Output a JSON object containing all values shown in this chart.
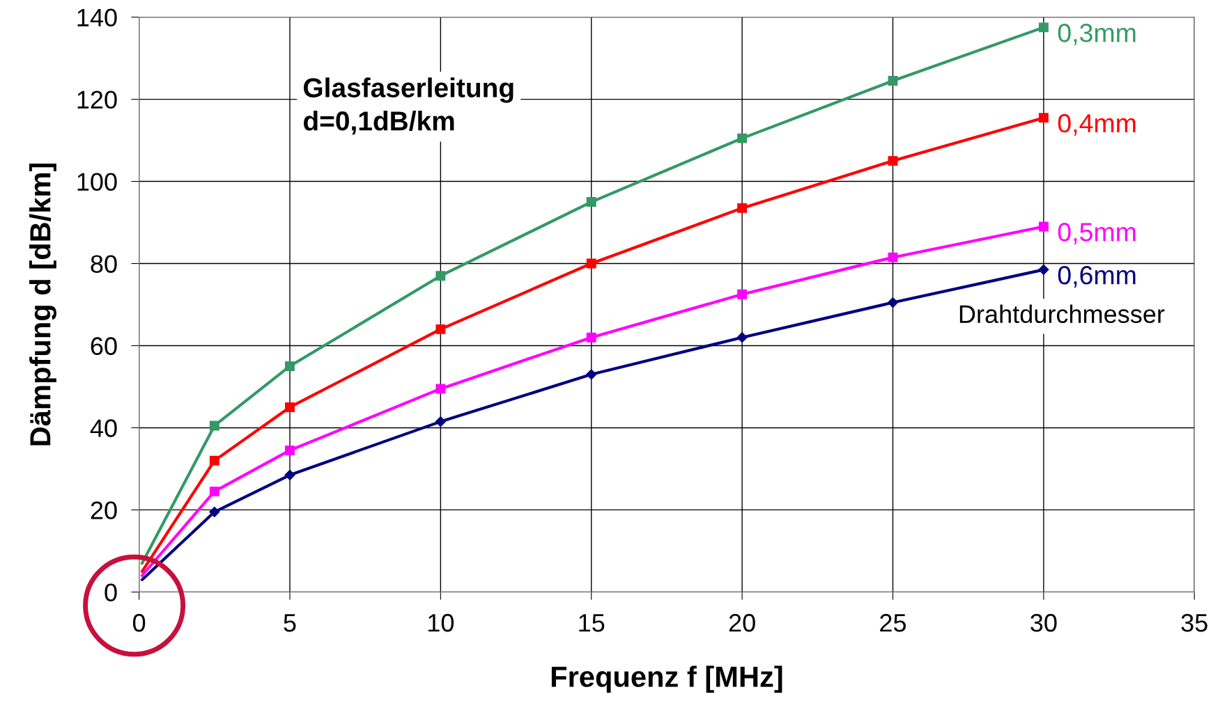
{
  "chart_data": {
    "type": "line",
    "xlabel": "Frequenz f [MHz]",
    "ylabel": "Dämpfung d [dB/km]",
    "x": [
      0.1,
      2.5,
      5,
      10,
      15,
      20,
      25,
      30
    ],
    "series": [
      {
        "name": "0,3mm",
        "color": "#339966",
        "marker": "square",
        "values": [
          7,
          40.5,
          55,
          77,
          95,
          110.5,
          124.5,
          137.5
        ]
      },
      {
        "name": "0,4mm",
        "color": "#ff0000",
        "marker": "square",
        "values": [
          5,
          32,
          45,
          64,
          80,
          93.5,
          105,
          115.5
        ]
      },
      {
        "name": "0,5mm",
        "color": "#ff00ff",
        "marker": "square",
        "values": [
          4,
          24.5,
          34.5,
          49.5,
          62,
          72.5,
          81.5,
          89
        ]
      },
      {
        "name": "0,6mm",
        "color": "#000080",
        "marker": "diamond",
        "values": [
          3,
          19.5,
          28.5,
          41.5,
          53,
          62,
          70.5,
          78.5
        ]
      }
    ],
    "annotations": [
      "Glasfaserleitung\nd=0,1dB/km",
      "Drahtdurchmesser"
    ],
    "xlim": [
      0,
      35
    ],
    "xticks": [
      0,
      5,
      10,
      15,
      20,
      25,
      30,
      35
    ],
    "ylim": [
      0,
      140
    ],
    "yticks": [
      0,
      20,
      40,
      60,
      80,
      100,
      120,
      140
    ],
    "grid": true,
    "legend": false
  }
}
